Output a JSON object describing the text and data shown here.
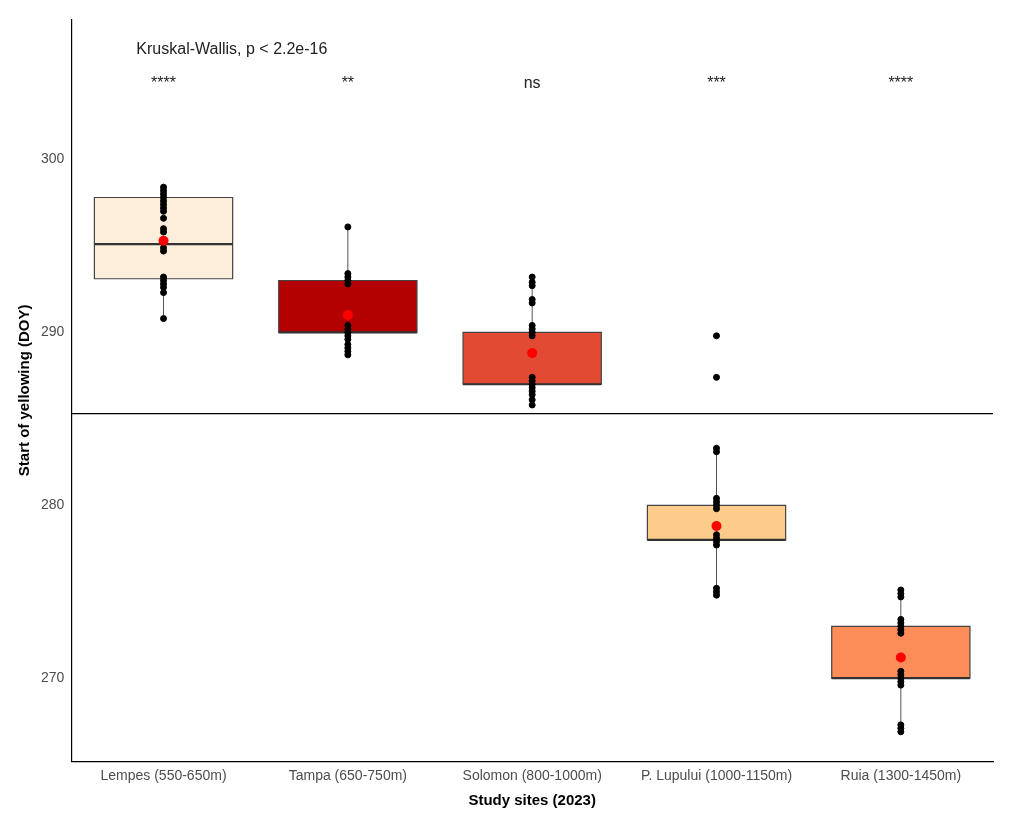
{
  "chart_data": {
    "type": "box",
    "xlabel": "Study sites (2023)",
    "ylabel": "Start of yellowing (DOY)",
    "categories": [
      "Lempes (550-650m)",
      "Tampa (650-750m)",
      "Solomon (800-1000m)",
      "P. Lupului (1000-1150m)",
      "Ruia (1300-1450m)"
    ],
    "ylim": [
      265.2,
      308.1
    ],
    "yticks": [
      270,
      280,
      290,
      300
    ],
    "grid": false,
    "series": [
      {
        "colors": [
          "#fdeedb",
          "#b30000",
          "#e34a33",
          "#fdcc8a",
          "#fc8d59"
        ],
        "boxes": [
          {
            "low": 291,
            "q1": 293.1,
            "median": 295.1,
            "q3": 297.8,
            "high": 298,
            "mean": 295.3
          },
          {
            "low": 289,
            "q1": 290,
            "median": 290,
            "q3": 293,
            "high": 296.1,
            "mean": 291
          },
          {
            "low": 286.1,
            "q1": 287,
            "median": 287,
            "q3": 290,
            "high": 293,
            "mean": 288.8
          },
          {
            "low": 275,
            "q1": 278,
            "median": 278,
            "q3": 280,
            "high": 283,
            "mean": 278.8
          },
          {
            "low": 267,
            "q1": 270,
            "median": 270,
            "q3": 273,
            "high": 275,
            "mean": 271.2
          }
        ]
      },
      {
        "type": "scatter",
        "color": "#000000",
        "x": [
          "Lempes (550-650m)",
          "Lempes (550-650m)",
          "Lempes (550-650m)",
          "Lempes (550-650m)",
          "Lempes (550-650m)",
          "Lempes (550-650m)",
          "Lempes (550-650m)",
          "Lempes (550-650m)",
          "Lempes (550-650m)",
          "Lempes (550-650m)",
          "Lempes (550-650m)",
          "Lempes (550-650m)",
          "Lempes (550-650m)",
          "Lempes (550-650m)",
          "Lempes (550-650m)",
          "Lempes (550-650m)",
          "Lempes (550-650m)",
          "Lempes (550-650m)",
          "Lempes (550-650m)",
          "Tampa (650-750m)",
          "Tampa (650-750m)",
          "Tampa (650-750m)",
          "Tampa (650-750m)",
          "Tampa (650-750m)",
          "Tampa (650-750m)",
          "Tampa (650-750m)",
          "Tampa (650-750m)",
          "Tampa (650-750m)",
          "Tampa (650-750m)",
          "Tampa (650-750m)",
          "Tampa (650-750m)",
          "Tampa (650-750m)",
          "Tampa (650-750m)",
          "Solomon (800-1000m)",
          "Solomon (800-1000m)",
          "Solomon (800-1000m)",
          "Solomon (800-1000m)",
          "Solomon (800-1000m)",
          "Solomon (800-1000m)",
          "Solomon (800-1000m)",
          "Solomon (800-1000m)",
          "Solomon (800-1000m)",
          "Solomon (800-1000m)",
          "Solomon (800-1000m)",
          "Solomon (800-1000m)",
          "Solomon (800-1000m)",
          "Solomon (800-1000m)",
          "Solomon (800-1000m)",
          "Solomon (800-1000m)",
          "Solomon (800-1000m)",
          "P. Lupului (1000-1150m)",
          "P. Lupului (1000-1150m)",
          "P. Lupului (1000-1150m)",
          "P. Lupului (1000-1150m)",
          "P. Lupului (1000-1150m)",
          "P. Lupului (1000-1150m)",
          "P. Lupului (1000-1150m)",
          "P. Lupului (1000-1150m)",
          "P. Lupului (1000-1150m)",
          "P. Lupului (1000-1150m)",
          "P. Lupului (1000-1150m)",
          "P. Lupului (1000-1150m)",
          "P. Lupului (1000-1150m)",
          "P. Lupului (1000-1150m)",
          "P. Lupului (1000-1150m)",
          "Ruia (1300-1450m)",
          "Ruia (1300-1450m)",
          "Ruia (1300-1450m)",
          "Ruia (1300-1450m)",
          "Ruia (1300-1450m)",
          "Ruia (1300-1450m)",
          "Ruia (1300-1450m)",
          "Ruia (1300-1450m)",
          "Ruia (1300-1450m)",
          "Ruia (1300-1450m)",
          "Ruia (1300-1450m)",
          "Ruia (1300-1450m)",
          "Ruia (1300-1450m)",
          "Ruia (1300-1450m)",
          "Ruia (1300-1450m)",
          "Ruia (1300-1450m)"
        ],
        "values": [
          298.4,
          298.2,
          298.0,
          297.8,
          297.6,
          297.4,
          297.2,
          297.0,
          296.6,
          296.0,
          295.8,
          294.9,
          294.7,
          293.2,
          293.0,
          292.8,
          292.6,
          292.3,
          290.8,
          296.1,
          293.4,
          293.2,
          293.0,
          292.8,
          290.4,
          290.2,
          290.0,
          289.8,
          289.6,
          289.3,
          289.1,
          288.9,
          288.7,
          293.2,
          292.9,
          292.7,
          291.9,
          291.7,
          290.4,
          290.2,
          290.0,
          289.8,
          287.4,
          287.2,
          287.0,
          286.8,
          286.6,
          286.4,
          286.1,
          285.8,
          289.8,
          287.4,
          283.3,
          283.1,
          280.4,
          280.2,
          280.0,
          279.8,
          278.3,
          278.1,
          277.9,
          277.7,
          275.2,
          275.0,
          274.8,
          275.1,
          274.9,
          274.7,
          273.4,
          273.2,
          273.0,
          272.8,
          272.6,
          270.4,
          270.2,
          270.0,
          269.8,
          269.6,
          267.3,
          267.1,
          266.9
        ]
      }
    ],
    "ref_lines": [
      {
        "axis": "y",
        "value": 285.3
      }
    ],
    "annotations": [
      "Kruskal-Wallis, p < 2.2e-16",
      "****",
      "**",
      "ns",
      "***",
      "****"
    ]
  }
}
